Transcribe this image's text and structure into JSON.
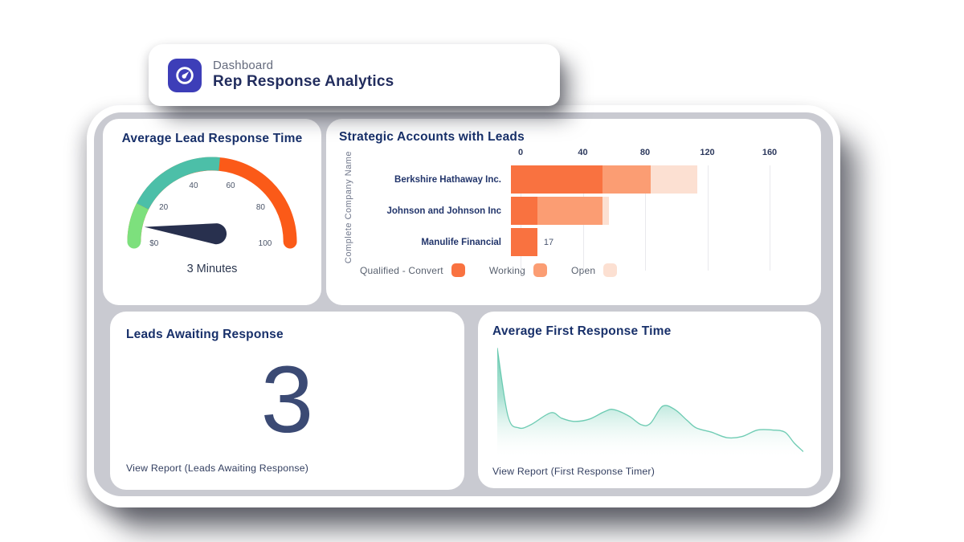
{
  "header": {
    "app_label": "Dashboard",
    "title": "Rep Response Analytics",
    "logo_icon": "gauge-icon",
    "logo_bg": "#3d3eb8"
  },
  "cards": {
    "count": {
      "title": "Leads Awaiting Response",
      "value": "3",
      "link_label": "View Report (Leads Awaiting Response)"
    },
    "area_link_label": "View Report (First Response Timer)"
  },
  "chart_data": [
    {
      "id": "average-lead-response-time-gauge",
      "type": "gauge",
      "title": "Average Lead Response Time",
      "min": 0,
      "max": 100,
      "value": 3,
      "value_label": "3 Minutes",
      "tick_labels": [
        "$0",
        "20",
        "40",
        "60",
        "80",
        "100"
      ],
      "segments": [
        {
          "from": 0,
          "to": 15,
          "color": "#7de07d"
        },
        {
          "from": 15,
          "to": 53,
          "color": "#4cbfa8"
        },
        {
          "from": 53,
          "to": 100,
          "color": "#fb5a18"
        }
      ],
      "needle_color": "#28304e"
    },
    {
      "id": "strategic-accounts-with-leads-bar",
      "type": "bar",
      "orientation": "horizontal",
      "stacked": true,
      "title": "Strategic Accounts with Leads",
      "ylabel": "Complete Company Name",
      "categories": [
        "Berkshire Hathaway Inc.",
        "Johnson and Johnson Inc",
        "Manulife Financial"
      ],
      "series": [
        {
          "name": "Qualified - Convert",
          "color": "#f97240",
          "values": [
            59,
            17,
            17
          ]
        },
        {
          "name": "Working",
          "color": "#fb9d73",
          "values": [
            31,
            42,
            0
          ]
        },
        {
          "name": "Open",
          "color": "#fce0d2",
          "values": [
            30,
            4,
            0
          ]
        }
      ],
      "bar_total_labels": [
        "",
        "",
        "17"
      ],
      "xlim": [
        0,
        160
      ],
      "xticks": [
        0,
        40,
        80,
        120,
        160
      ],
      "axis_side": "top",
      "legend_position": "bottom",
      "grid": true
    },
    {
      "id": "average-first-response-time-area",
      "type": "area",
      "title": "Average First Response Time",
      "line_color": "#57c3a7",
      "fill_top_color": "#74cdb6",
      "fill_bottom_color": "#ffffff",
      "x_range": [
        0,
        100
      ],
      "y_range": [
        0,
        100
      ],
      "points": [
        {
          "x": 0,
          "y": 100
        },
        {
          "x": 3.5,
          "y": 37
        },
        {
          "x": 7,
          "y": 26
        },
        {
          "x": 11,
          "y": 29
        },
        {
          "x": 17.5,
          "y": 40
        },
        {
          "x": 21,
          "y": 35
        },
        {
          "x": 25,
          "y": 32
        },
        {
          "x": 30,
          "y": 34
        },
        {
          "x": 35,
          "y": 41
        },
        {
          "x": 38,
          "y": 43
        },
        {
          "x": 43,
          "y": 37
        },
        {
          "x": 47,
          "y": 29
        },
        {
          "x": 50,
          "y": 30
        },
        {
          "x": 54,
          "y": 46
        },
        {
          "x": 58,
          "y": 43
        },
        {
          "x": 62,
          "y": 33
        },
        {
          "x": 65,
          "y": 26
        },
        {
          "x": 70,
          "y": 22
        },
        {
          "x": 75,
          "y": 17
        },
        {
          "x": 80,
          "y": 18
        },
        {
          "x": 85,
          "y": 24
        },
        {
          "x": 90,
          "y": 24
        },
        {
          "x": 94,
          "y": 22
        },
        {
          "x": 97,
          "y": 12
        },
        {
          "x": 100,
          "y": 4
        }
      ]
    }
  ],
  "colors": {
    "panel_frame": "#c9cad1",
    "card_bg": "#ffffff",
    "title_navy": "#18306a",
    "header_title": "#222d5e",
    "muted_gray": "#646a7c",
    "big_number": "#3b4a74",
    "link_text": "#333f60"
  }
}
